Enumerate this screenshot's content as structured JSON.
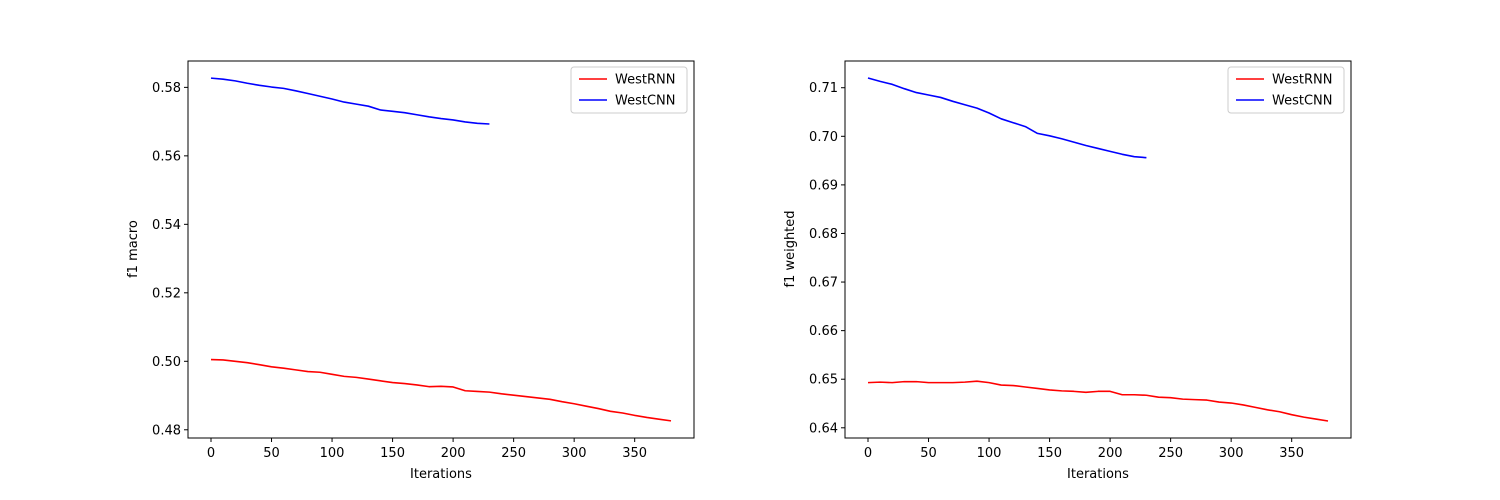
{
  "chart_data": [
    {
      "type": "line",
      "xlabel": "Iterations",
      "ylabel": "f1 macro",
      "xlim": [
        -19,
        399
      ],
      "ylim": [
        0.4776,
        0.5877
      ],
      "xticks": [
        0,
        50,
        100,
        150,
        200,
        250,
        300,
        350
      ],
      "yticks": [
        0.48,
        0.5,
        0.52,
        0.54,
        0.56,
        0.58
      ],
      "ytick_labels": [
        "0.48",
        "0.50",
        "0.52",
        "0.54",
        "0.56",
        "0.58"
      ],
      "legend_position": "top-right",
      "grid": false,
      "series": [
        {
          "name": "WestRNN",
          "color": "#ff0000",
          "x": [
            0,
            10,
            20,
            30,
            40,
            50,
            60,
            70,
            80,
            90,
            100,
            110,
            120,
            130,
            140,
            150,
            160,
            170,
            180,
            190,
            200,
            210,
            220,
            230,
            240,
            250,
            260,
            270,
            280,
            290,
            300,
            310,
            320,
            330,
            340,
            350,
            360,
            370,
            380
          ],
          "y": [
            0.5005,
            0.5004,
            0.5,
            0.4996,
            0.499,
            0.4984,
            0.498,
            0.4975,
            0.497,
            0.4968,
            0.4962,
            0.4956,
            0.4953,
            0.4948,
            0.4943,
            0.4938,
            0.4935,
            0.4931,
            0.4926,
            0.4927,
            0.4925,
            0.4914,
            0.4912,
            0.491,
            0.4905,
            0.4901,
            0.4897,
            0.4893,
            0.4889,
            0.4882,
            0.4876,
            0.4869,
            0.4862,
            0.4854,
            0.4849,
            0.4842,
            0.4836,
            0.4831,
            0.4826
          ]
        },
        {
          "name": "WestCNN",
          "color": "#0000ff",
          "x": [
            0,
            10,
            20,
            30,
            40,
            50,
            60,
            70,
            80,
            90,
            100,
            110,
            120,
            130,
            140,
            150,
            160,
            170,
            180,
            190,
            200,
            210,
            220,
            230
          ],
          "y": [
            0.5827,
            0.5824,
            0.5819,
            0.5812,
            0.5806,
            0.5801,
            0.5797,
            0.579,
            0.5782,
            0.5774,
            0.5766,
            0.5757,
            0.5751,
            0.5745,
            0.5734,
            0.573,
            0.5726,
            0.572,
            0.5714,
            0.5709,
            0.5705,
            0.5699,
            0.5695,
            0.5693
          ]
        }
      ]
    },
    {
      "type": "line",
      "xlabel": "Iterations",
      "ylabel": "f1 weighted",
      "xlim": [
        -19,
        399
      ],
      "ylim": [
        0.6379,
        0.7155
      ],
      "xticks": [
        0,
        50,
        100,
        150,
        200,
        250,
        300,
        350
      ],
      "yticks": [
        0.64,
        0.65,
        0.66,
        0.67,
        0.68,
        0.69,
        0.7,
        0.71
      ],
      "ytick_labels": [
        "0.64",
        "0.65",
        "0.66",
        "0.67",
        "0.68",
        "0.69",
        "0.70",
        "0.71"
      ],
      "legend_position": "top-right",
      "grid": false,
      "series": [
        {
          "name": "WestRNN",
          "color": "#ff0000",
          "x": [
            0,
            10,
            20,
            30,
            40,
            50,
            60,
            70,
            80,
            90,
            100,
            110,
            120,
            130,
            140,
            150,
            160,
            170,
            180,
            190,
            200,
            210,
            220,
            230,
            240,
            250,
            260,
            270,
            280,
            290,
            300,
            310,
            320,
            330,
            340,
            350,
            360,
            370,
            380
          ],
          "y": [
            0.6493,
            0.6494,
            0.6493,
            0.6495,
            0.6495,
            0.6493,
            0.6493,
            0.6493,
            0.6494,
            0.6496,
            0.6493,
            0.6488,
            0.6487,
            0.6484,
            0.6481,
            0.6478,
            0.6476,
            0.6475,
            0.6473,
            0.6475,
            0.6475,
            0.6468,
            0.6468,
            0.6467,
            0.6463,
            0.6462,
            0.6459,
            0.6458,
            0.6457,
            0.6453,
            0.6451,
            0.6447,
            0.6442,
            0.6437,
            0.6433,
            0.6427,
            0.6422,
            0.6418,
            0.6414
          ]
        },
        {
          "name": "WestCNN",
          "color": "#0000ff",
          "x": [
            0,
            10,
            20,
            30,
            40,
            50,
            60,
            70,
            80,
            90,
            100,
            110,
            120,
            130,
            140,
            150,
            160,
            170,
            180,
            190,
            200,
            210,
            220,
            230
          ],
          "y": [
            0.712,
            0.7113,
            0.7107,
            0.7098,
            0.709,
            0.7085,
            0.708,
            0.7072,
            0.7065,
            0.7058,
            0.7048,
            0.7036,
            0.7028,
            0.702,
            0.7006,
            0.7001,
            0.6995,
            0.6988,
            0.6981,
            0.6975,
            0.6969,
            0.6963,
            0.6958,
            0.6956
          ]
        }
      ]
    }
  ]
}
